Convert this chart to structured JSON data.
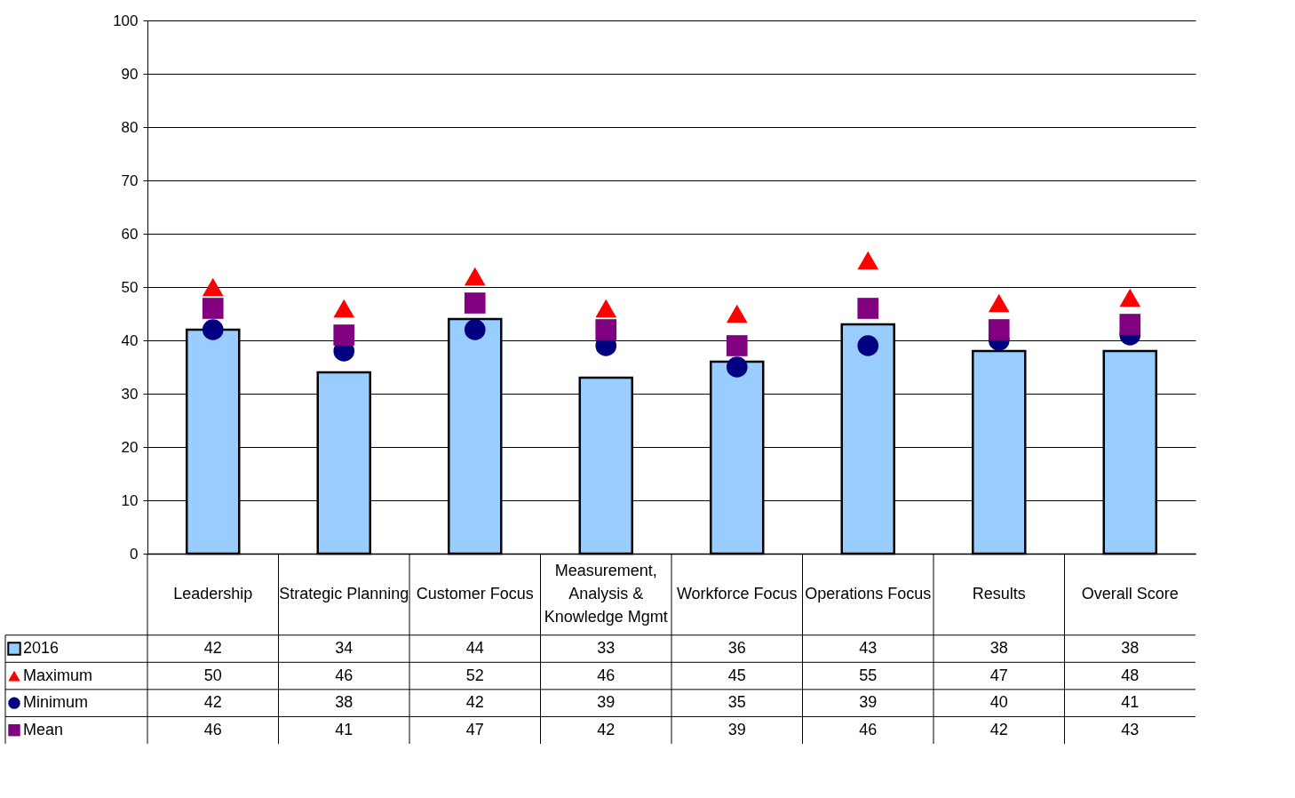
{
  "chart_data": {
    "type": "bar",
    "categories": [
      "Leadership",
      "Strategic Planning",
      "Customer Focus",
      "Measurement, Analysis & Knowledge Mgmt",
      "Workforce Focus",
      "Operations Focus",
      "Results",
      "Overall Score"
    ],
    "series": [
      {
        "name": "2016",
        "color": "#99ccff",
        "values": [
          42,
          34,
          44,
          33,
          36,
          43,
          38,
          38
        ]
      },
      {
        "name": "Maximum",
        "type": "scatter",
        "marker": "triangle",
        "color": "#ff0000",
        "values": [
          50,
          46,
          52,
          46,
          45,
          55,
          47,
          48
        ]
      },
      {
        "name": "Minimum",
        "type": "scatter",
        "marker": "circle",
        "color": "#000080",
        "values": [
          42,
          38,
          42,
          39,
          35,
          39,
          40,
          41
        ]
      },
      {
        "name": "Mean",
        "type": "scatter",
        "marker": "square",
        "color": "#800080",
        "values": [
          46,
          41,
          47,
          42,
          39,
          46,
          42,
          43
        ]
      }
    ],
    "ylim": [
      0,
      100
    ],
    "yticks": [
      0,
      10,
      20,
      30,
      40,
      50,
      60,
      70,
      80,
      90,
      100
    ],
    "grid": "y",
    "legend": "bottom left",
    "data_labels": true
  }
}
